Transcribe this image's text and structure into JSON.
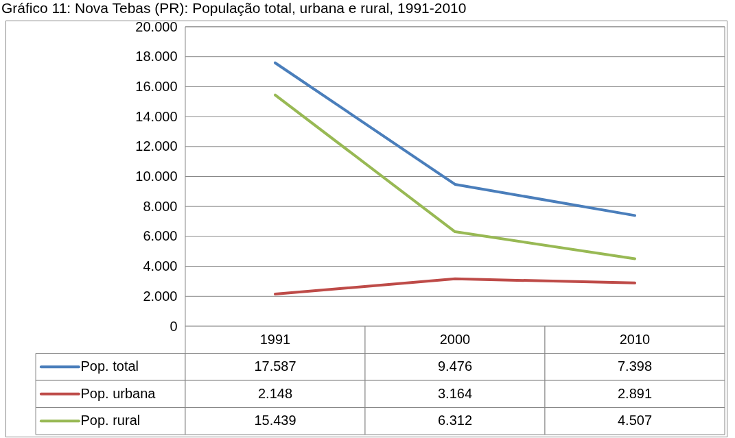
{
  "chart_data": {
    "type": "line",
    "title": "Gráfico 11: Nova Tebas (PR): População total, urbana e rural, 1991-2010",
    "categories": [
      "1991",
      "2000",
      "2010"
    ],
    "series": [
      {
        "name": "Pop. total",
        "color": "#4a7ebb",
        "values": [
          17587,
          9476,
          7398
        ],
        "value_labels": [
          "17.587",
          "9.476",
          "7.398"
        ]
      },
      {
        "name": "Pop. urbana",
        "color": "#be4b48",
        "values": [
          2148,
          3164,
          2891
        ],
        "value_labels": [
          "2.148",
          "3.164",
          "2.891"
        ]
      },
      {
        "name": "Pop. rural",
        "color": "#98b954",
        "values": [
          15439,
          6312,
          4507
        ],
        "value_labels": [
          "15.439",
          "6.312",
          "4.507"
        ]
      }
    ],
    "ylim": [
      0,
      20000
    ],
    "yticks": [
      0,
      {
        "value": 2000,
        "label": "2.000"
      },
      {
        "value": 4000,
        "label": "4.000"
      },
      {
        "value": 6000,
        "label": "6.000"
      },
      {
        "value": 8000,
        "label": "8.000"
      },
      {
        "value": 10000,
        "label": "10.000"
      },
      {
        "value": 12000,
        "label": "12.000"
      },
      {
        "value": 14000,
        "label": "14.000"
      },
      {
        "value": 16000,
        "label": "16.000"
      },
      {
        "value": 18000,
        "label": "18.000"
      },
      {
        "value": 20000,
        "label": "20.000"
      }
    ],
    "grid": "y",
    "legend": "bottom"
  }
}
